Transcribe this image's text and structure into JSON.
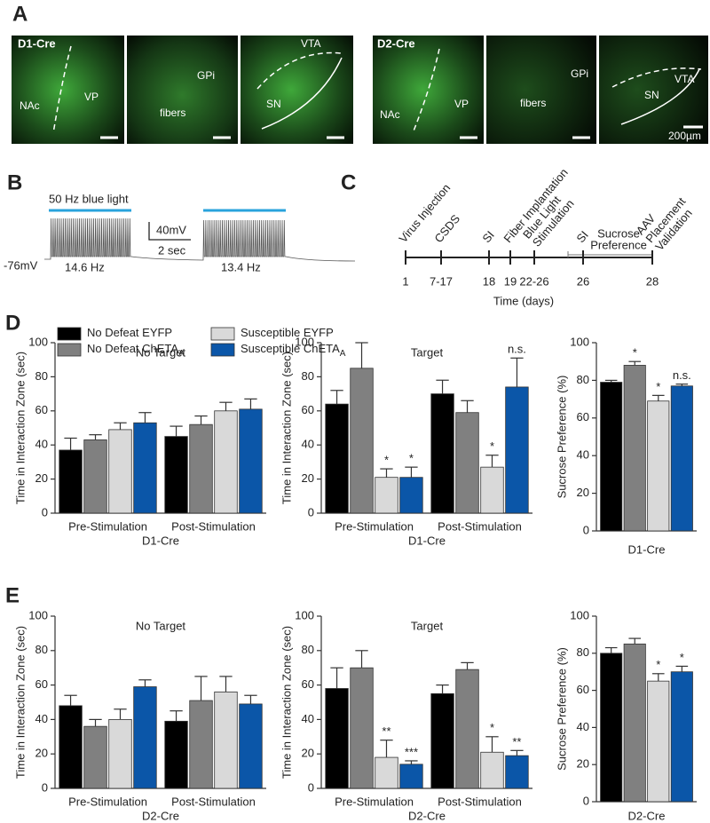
{
  "panel_a": {
    "label": "A",
    "images": [
      {
        "labels": [
          "D1-Cre",
          "NAc",
          "VP"
        ]
      },
      {
        "labels": [
          "GPi",
          "fibers"
        ]
      },
      {
        "labels": [
          "VTA",
          "SN"
        ]
      },
      {
        "labels": [
          "D2-Cre",
          "NAc",
          "VP"
        ]
      },
      {
        "labels": [
          "GPi",
          "fibers"
        ]
      },
      {
        "labels": [
          "VTA",
          "SN",
          "200µm"
        ]
      }
    ]
  },
  "panel_b": {
    "label": "B",
    "stim_label": "50 Hz blue light",
    "scale_v": "40mV",
    "scale_t": "2 sec",
    "baseline": "-76mV",
    "rates": [
      "14.6 Hz",
      "13.4 Hz"
    ]
  },
  "panel_c": {
    "label": "C",
    "events": [
      [
        "Virus Injection"
      ],
      [
        "CSDS"
      ],
      [
        "SI"
      ],
      [
        "Fiber Implantation"
      ],
      [
        "Blue Light",
        "Stimulation"
      ],
      [
        "SI"
      ],
      [
        "AAV",
        "Placement",
        "Validation"
      ]
    ],
    "ticks": [
      "1",
      "7-17",
      "18",
      "19",
      "22-26",
      "26",
      "28"
    ],
    "bracket_label": [
      "Sucrose",
      "Preference"
    ],
    "xlabel": "Time (days)"
  },
  "panel_labels": [
    "D",
    "E"
  ],
  "chart_data": [
    {
      "type": "bar",
      "title": "No Target",
      "ylabel": "Time in Interaction Zone (sec)",
      "xlabel": "D1-Cre",
      "categories": [
        "Pre-Stimulation",
        "Post-Stimulation"
      ],
      "ylim": [
        0,
        100
      ],
      "yticks": [
        0,
        20,
        40,
        60,
        80,
        100
      ],
      "series": [
        {
          "name": "No Defeat EYFP",
          "color": "#000000",
          "values": [
            37,
            45
          ],
          "errors": [
            7,
            6
          ]
        },
        {
          "name": "No Defeat ChETA",
          "subscript": "A",
          "color": "#808080",
          "values": [
            43,
            52
          ],
          "errors": [
            3,
            5
          ]
        },
        {
          "name": "Susceptible EYFP",
          "color": "#d9d9d9",
          "values": [
            49,
            60
          ],
          "errors": [
            4,
            5
          ]
        },
        {
          "name": "Susceptible ChETA",
          "subscript": "A",
          "color": "#0b56a8",
          "values": [
            53,
            61
          ],
          "errors": [
            6,
            6
          ]
        }
      ]
    },
    {
      "type": "bar",
      "title": "Target",
      "ylabel": "Time in Interaction Zone (sec)",
      "xlabel": "D1-Cre",
      "categories": [
        "Pre-Stimulation",
        "Post-Stimulation"
      ],
      "ylim": [
        0,
        100
      ],
      "yticks": [
        0,
        20,
        40,
        60,
        80,
        100
      ],
      "series": [
        {
          "color": "#000000",
          "values": [
            64,
            70
          ],
          "errors": [
            8,
            8
          ]
        },
        {
          "color": "#808080",
          "values": [
            85,
            59
          ],
          "errors": [
            15,
            7
          ]
        },
        {
          "color": "#d9d9d9",
          "values": [
            21,
            27
          ],
          "errors": [
            5,
            7
          ],
          "annotations": [
            "*",
            "*"
          ]
        },
        {
          "color": "#0b56a8",
          "values": [
            21,
            74
          ],
          "errors": [
            6,
            17
          ],
          "annotations": [
            "*",
            "n.s."
          ]
        }
      ]
    },
    {
      "type": "bar",
      "ylabel": "Sucrose Preference (%)",
      "xlabel": "D1-Cre",
      "categories": [
        null
      ],
      "ylim": [
        0,
        100
      ],
      "yticks": [
        0,
        20,
        40,
        60,
        80,
        100
      ],
      "series": [
        {
          "color": "#000000",
          "values": [
            79
          ],
          "errors": [
            1
          ]
        },
        {
          "color": "#808080",
          "values": [
            88
          ],
          "errors": [
            2
          ],
          "annotations": [
            "*"
          ]
        },
        {
          "color": "#d9d9d9",
          "values": [
            69
          ],
          "errors": [
            3
          ],
          "annotations": [
            "*"
          ]
        },
        {
          "color": "#0b56a8",
          "values": [
            77
          ],
          "errors": [
            1
          ],
          "annotations": [
            "n.s."
          ]
        }
      ]
    },
    {
      "type": "bar",
      "title": "No Target",
      "ylabel": "Time in Interaction Zone (sec)",
      "xlabel": "D2-Cre",
      "categories": [
        "Pre-Stimulation",
        "Post-Stimulation"
      ],
      "ylim": [
        0,
        100
      ],
      "yticks": [
        0,
        20,
        40,
        60,
        80,
        100
      ],
      "series": [
        {
          "color": "#000000",
          "values": [
            48,
            39
          ],
          "errors": [
            6,
            6
          ]
        },
        {
          "color": "#808080",
          "values": [
            36,
            51
          ],
          "errors": [
            4,
            14
          ]
        },
        {
          "color": "#d9d9d9",
          "values": [
            40,
            56
          ],
          "errors": [
            6,
            9
          ]
        },
        {
          "color": "#0b56a8",
          "values": [
            59,
            49
          ],
          "errors": [
            4,
            5
          ]
        }
      ]
    },
    {
      "type": "bar",
      "title": "Target",
      "ylabel": "Time in Interaction Zone (sec)",
      "xlabel": "D2-Cre",
      "categories": [
        "Pre-Stimulation",
        "Post-Stimulation"
      ],
      "ylim": [
        0,
        100
      ],
      "yticks": [
        0,
        20,
        40,
        60,
        80,
        100
      ],
      "series": [
        {
          "color": "#000000",
          "values": [
            58,
            55
          ],
          "errors": [
            12,
            5
          ]
        },
        {
          "color": "#808080",
          "values": [
            70,
            69
          ],
          "errors": [
            10,
            4
          ]
        },
        {
          "color": "#d9d9d9",
          "values": [
            18,
            21
          ],
          "errors": [
            10,
            9
          ],
          "annotations": [
            "**",
            "*"
          ]
        },
        {
          "color": "#0b56a8",
          "values": [
            14,
            19
          ],
          "errors": [
            2,
            3
          ],
          "annotations": [
            "***",
            "**"
          ]
        }
      ]
    },
    {
      "type": "bar",
      "ylabel": "Sucrose Preference (%)",
      "xlabel": "D2-Cre",
      "categories": [
        null
      ],
      "ylim": [
        0,
        100
      ],
      "yticks": [
        0,
        20,
        40,
        60,
        80,
        100
      ],
      "series": [
        {
          "color": "#000000",
          "values": [
            80
          ],
          "errors": [
            3
          ]
        },
        {
          "color": "#808080",
          "values": [
            85
          ],
          "errors": [
            3
          ]
        },
        {
          "color": "#d9d9d9",
          "values": [
            65
          ],
          "errors": [
            4
          ],
          "annotations": [
            "*"
          ]
        },
        {
          "color": "#0b56a8",
          "values": [
            70
          ],
          "errors": [
            3
          ],
          "annotations": [
            "*"
          ]
        }
      ]
    }
  ]
}
